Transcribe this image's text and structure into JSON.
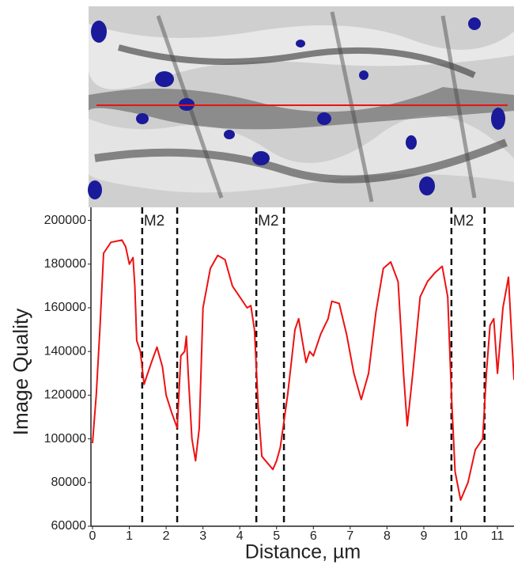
{
  "chart_data": {
    "type": "line",
    "x_label": "Distance, µm",
    "y_label": "Image Quality",
    "color": "#ee1111",
    "x": [
      0,
      0.1,
      0.2,
      0.3,
      0.5,
      0.8,
      0.9,
      1.0,
      1.1,
      1.15,
      1.2,
      1.3,
      1.4,
      1.5,
      1.6,
      1.75,
      1.9,
      2.0,
      2.15,
      2.3,
      2.4,
      2.5,
      2.55,
      2.6,
      2.7,
      2.8,
      2.9,
      3.0,
      3.2,
      3.4,
      3.6,
      3.8,
      4.0,
      4.2,
      4.3,
      4.4,
      4.5,
      4.6,
      4.8,
      4.9,
      5.0,
      5.1,
      5.2,
      5.3,
      5.4,
      5.5,
      5.6,
      5.7,
      5.8,
      5.9,
      6.0,
      6.2,
      6.4,
      6.5,
      6.7,
      6.9,
      7.1,
      7.3,
      7.5,
      7.7,
      7.9,
      8.1,
      8.3,
      8.45,
      8.55,
      8.7,
      8.9,
      9.1,
      9.3,
      9.5,
      9.65,
      9.75,
      9.85,
      10.0,
      10.2,
      10.4,
      10.6,
      10.7,
      10.8,
      10.9,
      11.0,
      11.15,
      11.3,
      11.45
    ],
    "values": [
      98000,
      120000,
      150000,
      185000,
      190000,
      191000,
      188000,
      180000,
      183000,
      170000,
      145000,
      140000,
      125000,
      130000,
      135000,
      142000,
      133000,
      120000,
      112000,
      105000,
      138000,
      140000,
      147000,
      130000,
      100000,
      90000,
      105000,
      160000,
      178000,
      184000,
      182000,
      170000,
      165000,
      160000,
      161000,
      150000,
      115000,
      92000,
      88000,
      86000,
      90000,
      96000,
      108000,
      120000,
      135000,
      150000,
      155000,
      145000,
      135000,
      140000,
      138000,
      148000,
      155000,
      163000,
      162000,
      148000,
      130000,
      118000,
      130000,
      158000,
      178000,
      181000,
      172000,
      130000,
      106000,
      130000,
      165000,
      172000,
      176000,
      179000,
      165000,
      120000,
      85000,
      72000,
      80000,
      95000,
      100000,
      130000,
      152000,
      155000,
      130000,
      160000,
      174000,
      127000
    ],
    "xlim": [
      0,
      11.45
    ],
    "xticks": [
      0,
      1,
      2,
      3,
      4,
      5,
      6,
      7,
      8,
      9,
      10,
      11
    ],
    "ylim": [
      60000,
      206000
    ],
    "yticks": [
      60000,
      80000,
      100000,
      120000,
      140000,
      160000,
      180000,
      200000
    ],
    "annotations": [
      {
        "label": "M2",
        "x_start": 1.35,
        "x_end": 2.3
      },
      {
        "label": "M2",
        "x_start": 4.45,
        "x_end": 5.2
      },
      {
        "label": "M2",
        "x_start": 9.75,
        "x_end": 10.65
      }
    ]
  }
}
